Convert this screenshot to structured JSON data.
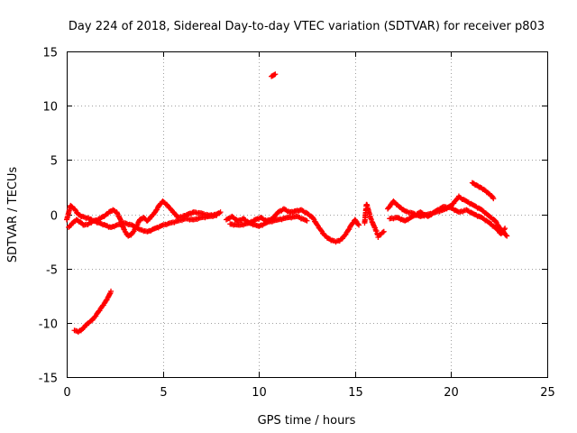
{
  "chart_data": {
    "type": "scatter",
    "title": "Day 224 of 2018, Sidereal Day-to-day VTEC variation (SDTVAR) for receiver p803",
    "xlabel": "GPS time / hours",
    "ylabel": "SDTVAR / TECUs",
    "xlim": [
      0,
      25
    ],
    "ylim": [
      -15,
      15
    ],
    "xticks": [
      0,
      5,
      10,
      15,
      20,
      25
    ],
    "yticks": [
      -15,
      -10,
      -5,
      0,
      5,
      10,
      15
    ],
    "xtick_labels": [
      "0",
      "5",
      "10",
      "15",
      "20",
      "25"
    ],
    "ytick_labels": [
      "-15",
      "-10",
      "-5",
      "0",
      "5",
      "10",
      "15"
    ],
    "grid": true,
    "marker": "+",
    "color": "#ff0000",
    "series": [
      {
        "name": "SDTVAR",
        "segments": [
          {
            "x": [
              0.0,
              0.2,
              0.4,
              0.6,
              0.8,
              1.0,
              1.2,
              1.4,
              1.6,
              1.8,
              2.0,
              2.2,
              2.4,
              2.6,
              2.8,
              3.0,
              3.2,
              3.4,
              3.6,
              3.8,
              4.0,
              4.2,
              4.4,
              4.6,
              4.8,
              5.0,
              5.2,
              5.4,
              5.6,
              5.8,
              6.0,
              6.3,
              6.6,
              7.0,
              7.4,
              7.8,
              8.0
            ],
            "y": [
              -0.5,
              0.8,
              0.5,
              0.0,
              -0.2,
              -0.3,
              -0.4,
              -0.6,
              -0.5,
              -0.3,
              -0.1,
              0.2,
              0.4,
              0.2,
              -0.5,
              -1.5,
              -2.0,
              -1.8,
              -1.2,
              -0.5,
              -0.3,
              -0.6,
              -0.2,
              0.2,
              0.8,
              1.2,
              0.9,
              0.5,
              0.1,
              -0.3,
              -0.2,
              0.0,
              0.2,
              0.1,
              -0.1,
              0.0,
              0.2
            ]
          },
          {
            "x": [
              0.1,
              0.3,
              0.5,
              0.7,
              0.9,
              1.1,
              1.4,
              1.7,
              2.0,
              2.3,
              2.6,
              3.0,
              3.4,
              3.8,
              4.2,
              4.6,
              5.0,
              5.4,
              5.8,
              6.2,
              6.6,
              7.0,
              7.4,
              7.8
            ],
            "y": [
              -1.2,
              -0.8,
              -0.5,
              -0.7,
              -1.0,
              -0.9,
              -0.6,
              -0.8,
              -1.0,
              -1.2,
              -1.0,
              -0.8,
              -1.0,
              -1.4,
              -1.6,
              -1.3,
              -1.0,
              -0.8,
              -0.6,
              -0.4,
              -0.5,
              -0.3,
              -0.2,
              -0.1
            ]
          },
          {
            "x": [
              0.4,
              0.6,
              0.8,
              1.0,
              1.2,
              1.4,
              1.6,
              1.8,
              2.0,
              2.2,
              2.3
            ],
            "y": [
              -10.7,
              -10.8,
              -10.6,
              -10.2,
              -9.9,
              -9.6,
              -9.1,
              -8.6,
              -8.1,
              -7.5,
              -7.1
            ]
          },
          {
            "x": [
              10.65,
              10.75,
              10.85
            ],
            "y": [
              12.7,
              12.8,
              12.9
            ]
          },
          {
            "x": [
              8.3,
              8.6,
              8.9,
              9.2,
              9.5,
              9.8,
              10.1,
              10.4,
              10.7,
              11.0,
              11.3,
              11.6,
              11.9,
              12.2,
              12.5,
              12.8,
              13.0,
              13.2,
              13.4,
              13.6,
              13.8,
              14.0,
              14.2,
              14.4,
              14.6,
              14.8,
              15.0,
              15.2
            ],
            "y": [
              -0.5,
              -0.2,
              -0.6,
              -0.4,
              -0.8,
              -0.5,
              -0.3,
              -0.6,
              -0.4,
              0.2,
              0.5,
              0.2,
              0.3,
              0.4,
              0.1,
              -0.3,
              -0.9,
              -1.4,
              -1.9,
              -2.2,
              -2.4,
              -2.5,
              -2.4,
              -2.1,
              -1.6,
              -1.0,
              -0.5,
              -1.0
            ]
          },
          {
            "x": [
              8.5,
              9.0,
              9.5,
              10.0,
              10.5,
              11.0,
              11.5,
              12.0,
              12.5
            ],
            "y": [
              -0.9,
              -1.0,
              -0.8,
              -1.1,
              -0.7,
              -0.5,
              -0.3,
              -0.2,
              -0.6
            ]
          },
          {
            "x": [
              15.5,
              15.6,
              15.8,
              16.2,
              16.5
            ],
            "y": [
              -0.8,
              1.0,
              -0.3,
              -2.0,
              -1.6
            ]
          },
          {
            "x": [
              16.7,
              17.0,
              17.3,
              17.6,
              18.0,
              18.4,
              18.8,
              19.2,
              19.6,
              20.0,
              20.4,
              20.8,
              21.2,
              21.6,
              22.0,
              22.3,
              22.5,
              22.7,
              22.9
            ],
            "y": [
              0.5,
              1.2,
              0.7,
              0.3,
              0.1,
              -0.2,
              0.0,
              0.2,
              0.4,
              0.8,
              1.6,
              1.2,
              0.8,
              0.4,
              -0.2,
              -0.6,
              -1.2,
              -1.6,
              -2.0
            ]
          },
          {
            "x": [
              16.8,
              17.2,
              17.6,
              18.0,
              18.4,
              18.8,
              19.2,
              19.6,
              20.0,
              20.4,
              20.8,
              21.2,
              21.6,
              22.0,
              22.4,
              22.6,
              22.8
            ],
            "y": [
              -0.4,
              -0.3,
              -0.6,
              -0.2,
              0.2,
              -0.2,
              0.3,
              0.7,
              0.6,
              0.2,
              0.4,
              0.0,
              -0.3,
              -0.8,
              -1.4,
              -1.8,
              -1.3
            ]
          },
          {
            "x": [
              21.1,
              21.3,
              21.5,
              21.7,
              21.9,
              22.1,
              22.2
            ],
            "y": [
              2.9,
              2.7,
              2.5,
              2.3,
              2.0,
              1.7,
              1.5
            ]
          }
        ]
      }
    ]
  }
}
